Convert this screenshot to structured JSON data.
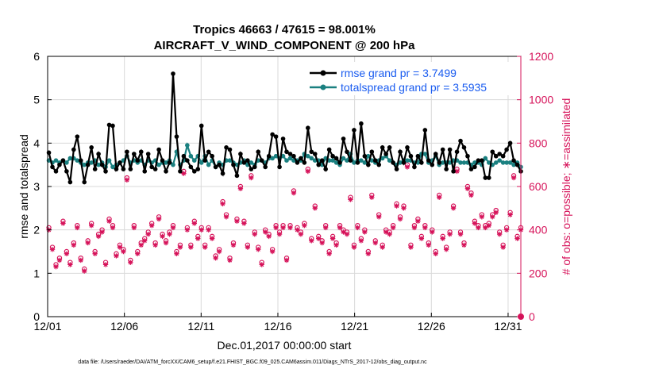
{
  "chart_data": {
    "type": "line",
    "title_line1": "Tropics 46663 / 47615 = 98.001%",
    "title_line2": "AIRCRAFT_V_WIND_COMPONENT @ 200 hPa",
    "xlabel": "Dec.01,2017 00:00:00 start",
    "ylabel_left": "rmse and totalspread",
    "ylabel_right": "# of obs: o=possible; ∗=assimilated",
    "xlim": [
      0,
      30.83
    ],
    "ylim_left": [
      0,
      6
    ],
    "ylim_right": [
      0,
      1200
    ],
    "x_ticks": [
      0,
      5,
      10,
      15,
      20,
      25,
      30
    ],
    "x_tick_labels": [
      "12/01",
      "12/06",
      "12/11",
      "12/16",
      "12/21",
      "12/26",
      "12/31"
    ],
    "y_left_ticks": [
      "0",
      "1",
      "2",
      "3",
      "4",
      "5",
      "6"
    ],
    "y_right_ticks": [
      "0",
      "200",
      "400",
      "600",
      "800",
      "1000",
      "1200"
    ],
    "footer": "data file: /Users/raeder/DAI/ATM_forcXX/CAM6_setup/f.e21.FHIST_BGC.f09_025.CAM6assim.011/Diags_NTrS_2017-12/obs_diag_output.nc",
    "colors": {
      "rmse": "#000000",
      "totalspread": "#1a8080",
      "obs": "#d6135a",
      "legend_text": "#1a5cf0"
    },
    "series": [
      {
        "name": "rmse",
        "legend": "rmse grand pr = 3.7499",
        "axis": "left",
        "values": [
          3.78,
          3.45,
          3.35,
          3.5,
          3.6,
          3.35,
          3.1,
          3.85,
          4.15,
          3.6,
          3.1,
          3.5,
          3.9,
          3.4,
          3.75,
          3.5,
          3.35,
          4.42,
          4.4,
          3.4,
          3.55,
          3.4,
          3.8,
          3.4,
          3.75,
          3.6,
          3.8,
          3.35,
          3.75,
          3.45,
          3.4,
          3.85,
          3.6,
          3.35,
          3.55,
          5.6,
          4.15,
          3.35,
          3.7,
          3.6,
          3.45,
          3.35,
          3.4,
          4.4,
          3.6,
          3.8,
          3.7,
          3.45,
          3.5,
          3.3,
          3.9,
          3.85,
          3.5,
          3.25,
          3.75,
          3.55,
          3.6,
          3.4,
          3.45,
          3.8,
          3.6,
          3.45,
          3.7,
          4.2,
          4.15,
          3.45,
          4.1,
          3.8,
          3.75,
          3.7,
          3.55,
          3.65,
          3.55,
          4.35,
          3.8,
          3.75,
          3.5,
          3.6,
          3.4,
          3.85,
          3.7,
          3.65,
          3.55,
          4.1,
          3.8,
          3.6,
          4.3,
          3.55,
          4.45,
          3.7,
          3.5,
          3.8,
          3.6,
          3.5,
          3.9,
          3.75,
          3.9,
          3.55,
          3.4,
          3.8,
          3.55,
          3.9,
          3.7,
          3.45,
          3.7,
          3.55,
          4.3,
          3.6,
          3.5,
          3.75,
          3.55,
          3.85,
          3.4,
          3.85,
          3.35,
          3.8,
          4.05,
          3.9,
          3.7,
          3.4,
          3.45,
          3.6,
          3.6,
          3.2,
          3.2,
          3.8,
          3.7,
          3.75,
          3.7,
          3.85,
          4.0,
          3.6,
          3.5,
          3.35
        ]
      },
      {
        "name": "totalspread",
        "legend": "totalspread grand pr = 3.5935",
        "axis": "left",
        "values": [
          3.6,
          3.55,
          3.6,
          3.55,
          3.6,
          3.55,
          3.65,
          3.65,
          3.6,
          3.55,
          3.5,
          3.55,
          3.55,
          3.6,
          3.5,
          3.55,
          3.45,
          3.6,
          3.45,
          3.5,
          3.55,
          3.6,
          3.7,
          3.55,
          3.6,
          3.55,
          3.6,
          3.5,
          3.6,
          3.55,
          3.6,
          3.5,
          3.55,
          3.55,
          3.6,
          3.5,
          3.8,
          3.5,
          3.6,
          3.95,
          3.7,
          3.6,
          3.7,
          3.55,
          3.7,
          3.5,
          3.6,
          3.45,
          3.55,
          3.5,
          3.6,
          3.6,
          3.55,
          3.5,
          3.55,
          3.6,
          3.5,
          3.55,
          3.5,
          3.6,
          3.6,
          3.55,
          3.65,
          3.65,
          3.7,
          3.65,
          3.7,
          3.6,
          3.65,
          3.6,
          3.6,
          3.6,
          3.75,
          3.7,
          3.65,
          3.6,
          3.6,
          3.5,
          3.65,
          3.6,
          3.6,
          3.55,
          3.5,
          3.65,
          3.6,
          3.75,
          3.55,
          3.6,
          3.6,
          3.55,
          3.7,
          3.6,
          3.55,
          3.6,
          3.65,
          3.7,
          3.6,
          3.55,
          3.5,
          3.55,
          3.6,
          3.6,
          3.6,
          3.55,
          3.55,
          3.75,
          3.75,
          3.55,
          3.6,
          3.7,
          3.5,
          3.55,
          3.55,
          3.55,
          3.6,
          3.6,
          3.55,
          3.55,
          3.55,
          3.5,
          3.55,
          3.55,
          3.5,
          3.65,
          3.55,
          3.5,
          3.55,
          3.6,
          3.55,
          3.55,
          3.55,
          3.5,
          3.55,
          3.45
        ]
      },
      {
        "name": "obs_possible",
        "legend": "o=possible",
        "axis": "right",
        "values": [
          410,
          320,
          240,
          270,
          440,
          300,
          250,
          340,
          420,
          270,
          220,
          350,
          430,
          300,
          380,
          400,
          250,
          450,
          420,
          290,
          330,
          310,
          640,
          260,
          420,
          300,
          340,
          360,
          390,
          430,
          340,
          460,
          380,
          350,
          390,
          420,
          300,
          330,
          670,
          410,
          330,
          440,
          370,
          410,
          330,
          410,
          370,
          280,
          310,
          530,
          470,
          270,
          340,
          450,
          600,
          440,
          330,
          650,
          390,
          320,
          250,
          400,
          380,
          310,
          420,
          390,
          420,
          270,
          420,
          580,
          410,
          390,
          430,
          680,
          360,
          510,
          370,
          350,
          420,
          300,
          370,
          340,
          420,
          400,
          390,
          550,
          330,
          420,
          360,
          400,
          300,
          560,
          350,
          470,
          330,
          400,
          390,
          420,
          520,
          460,
          510,
          700,
          330,
          420,
          450,
          370,
          420,
          340,
          400,
          300,
          560,
          370,
          320,
          390,
          510,
          680,
          390,
          340,
          600,
          570,
          440,
          420,
          470,
          420,
          430,
          470,
          490,
          390,
          330,
          410,
          480,
          650,
          370,
          410
        ]
      },
      {
        "name": "obs_assimilated",
        "legend": "*=assimilated",
        "axis": "right",
        "values": [
          400,
          310,
          230,
          260,
          430,
          290,
          240,
          330,
          410,
          260,
          210,
          340,
          420,
          290,
          370,
          390,
          240,
          440,
          410,
          280,
          320,
          300,
          630,
          250,
          410,
          290,
          330,
          350,
          380,
          420,
          330,
          450,
          370,
          340,
          380,
          410,
          290,
          320,
          660,
          400,
          320,
          430,
          360,
          400,
          320,
          400,
          360,
          270,
          300,
          520,
          460,
          260,
          330,
          440,
          590,
          430,
          320,
          640,
          380,
          310,
          240,
          390,
          370,
          300,
          410,
          380,
          410,
          260,
          410,
          570,
          400,
          380,
          420,
          670,
          350,
          500,
          360,
          340,
          410,
          290,
          360,
          330,
          410,
          390,
          380,
          540,
          320,
          410,
          350,
          390,
          290,
          550,
          340,
          460,
          320,
          390,
          380,
          410,
          510,
          450,
          500,
          690,
          320,
          410,
          440,
          360,
          410,
          330,
          390,
          290,
          550,
          360,
          310,
          380,
          500,
          670,
          380,
          330,
          590,
          560,
          430,
          410,
          460,
          410,
          420,
          460,
          480,
          380,
          320,
          400,
          470,
          640,
          360,
          400
        ]
      }
    ],
    "end_marker_value": 0
  }
}
